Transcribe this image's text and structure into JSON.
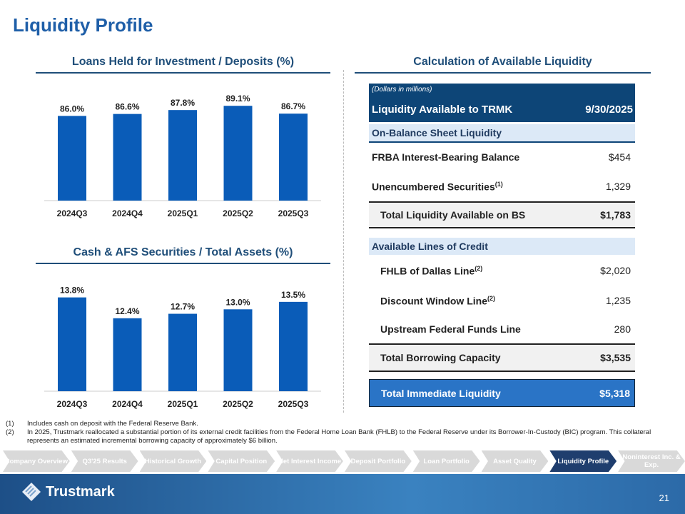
{
  "title": "Liquidity Profile",
  "chart_data": [
    {
      "type": "bar",
      "title": "Loans Held for Investment / Deposits (%)",
      "categories": [
        "2024Q3",
        "2024Q4",
        "2025Q1",
        "2025Q2",
        "2025Q3"
      ],
      "values": [
        86.0,
        86.6,
        87.8,
        89.1,
        86.7
      ],
      "labels": [
        "86.0%",
        "86.6%",
        "87.8%",
        "89.1%",
        "86.7%"
      ],
      "ylim": [
        60,
        92
      ],
      "color": "#0a5cb8"
    },
    {
      "type": "bar",
      "title": "Cash & AFS Securities / Total Assets (%)",
      "categories": [
        "2024Q3",
        "2024Q4",
        "2025Q1",
        "2025Q2",
        "2025Q3"
      ],
      "values": [
        13.8,
        12.4,
        12.7,
        13.0,
        13.5
      ],
      "labels": [
        "13.8%",
        "12.4%",
        "12.7%",
        "13.0%",
        "13.5%"
      ],
      "ylim": [
        7.5,
        14.5
      ],
      "color": "#0a5cb8"
    }
  ],
  "table": {
    "section_title": "Calculation of Available Liquidity",
    "note": "(Dollars in millions)",
    "header_label": "Liquidity Available to TRMK",
    "header_date": "9/30/2025",
    "on_bs": "On-Balance Sheet Liquidity",
    "frba": {
      "label": "FRBA Interest-Bearing Balance",
      "value": "$454"
    },
    "unenc": {
      "label": "Unencumbered Securities",
      "sup": "(1)",
      "value": "1,329"
    },
    "total_bs": {
      "label": "Total Liquidity Available on BS",
      "value": "$1,783"
    },
    "lines": "Available Lines of Credit",
    "fhlb": {
      "label": "FHLB of Dallas Line",
      "sup": "(2)",
      "value": "$2,020"
    },
    "discount": {
      "label": "Discount Window Line",
      "sup": "(2)",
      "value": "1,235"
    },
    "upstream": {
      "label": "Upstream Federal Funds Line",
      "value": "280"
    },
    "total_borrow": {
      "label": "Total Borrowing Capacity",
      "value": "$3,535"
    },
    "total_immediate": {
      "label": "Total Immediate Liquidity",
      "value": "$5,318"
    }
  },
  "footnotes": [
    {
      "num": "(1)",
      "text": "Includes cash on deposit with the Federal Reserve Bank."
    },
    {
      "num": "(2)",
      "text": "In 2025, Trustmark reallocated a substantial portion of its external credit facilities from the Federal Home Loan Bank (FHLB) to the Federal Reserve under its Borrower-In-Custody (BIC) program. This collateral represents an estimated incremental borrowing capacity of approximately $6 billion."
    }
  ],
  "nav": [
    "Company Overview",
    "Q3'25 Results",
    "Historical Growth",
    "Capital Position",
    "Net Interest Income",
    "Deposit Portfolio",
    "Loan Portfolio",
    "Asset Quality",
    "Liquidity Profile",
    "Noninterest Inc. & Exp."
  ],
  "nav_active": 8,
  "logo": "Trustmark",
  "page_number": "21"
}
